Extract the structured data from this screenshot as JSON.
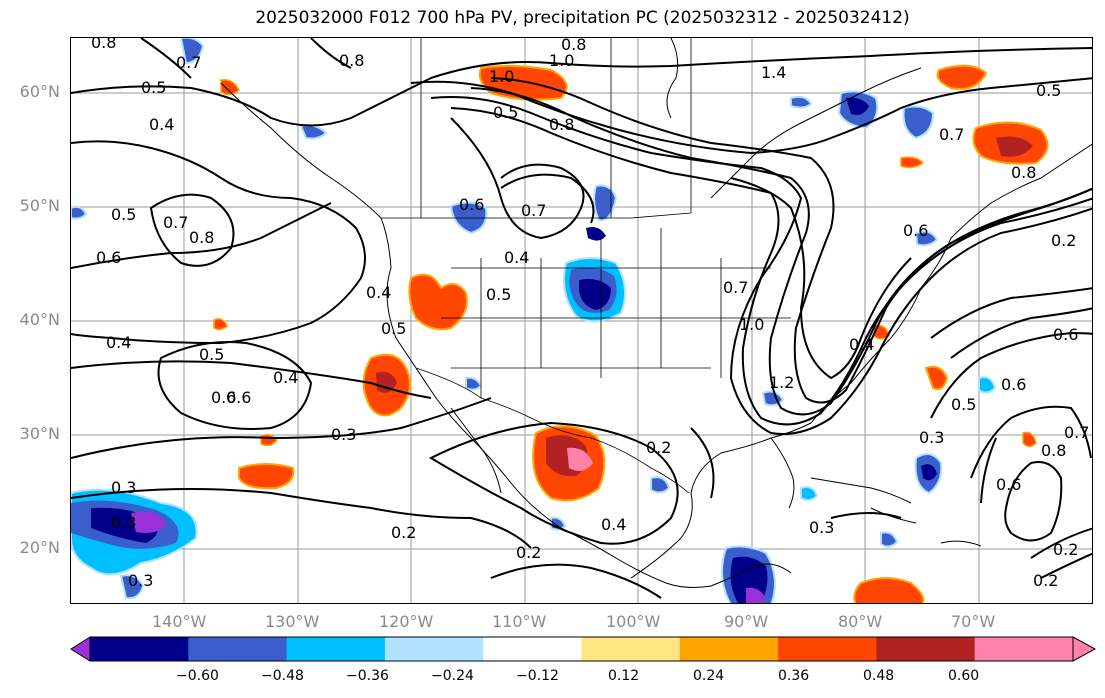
{
  "title": "2025032000 F012 700 hPa PV, precipitation PC (2025032312 - 2025032412)",
  "lat_labels": [
    "60°N",
    "50°N",
    "40°N",
    "30°N",
    "20°N"
  ],
  "lon_labels": [
    "140°W",
    "130°W",
    "120°W",
    "110°W",
    "100°W",
    "90°W",
    "80°W",
    "70°W"
  ],
  "colorbar": {
    "ticks": [
      "−0.60",
      "−0.48",
      "−0.36",
      "−0.24",
      "−0.12",
      "0.12",
      "0.24",
      "0.36",
      "0.48",
      "0.60"
    ],
    "colors": [
      "#9b30d9",
      "#00008b",
      "#3a5fcd",
      "#00bfff",
      "#b0e2ff",
      "#ffffff",
      "#ffe680",
      "#ffa500",
      "#ff4500",
      "#b22222",
      "#ff82ab",
      "#ff82ab"
    ]
  },
  "contour_labels": [
    "0.8",
    "0.7",
    "0.5",
    "0.4",
    "0.8",
    "1.0",
    "0.8",
    "1.0",
    "0.5",
    "0.8",
    "1.4",
    "0.5",
    "0.7",
    "0.8",
    "0.5",
    "0.7",
    "0.8",
    "0.6",
    "0.6",
    "0.7",
    "0.4",
    "0.5",
    "0.4",
    "0.5",
    "0.4",
    "0.5",
    "0.6",
    "0.4",
    "0.3",
    "0.3",
    "0.2",
    "0.2",
    "0.4",
    "0.3",
    "0.3",
    "0.2",
    "1.0",
    "1.2",
    "0.7",
    "0.6",
    "0.4",
    "0.6",
    "0.5",
    "0.3",
    "0.6",
    "0.7",
    "0.6",
    "0.3",
    "0.2",
    "0.2",
    "0.6",
    "0.8",
    "0.2"
  ]
}
